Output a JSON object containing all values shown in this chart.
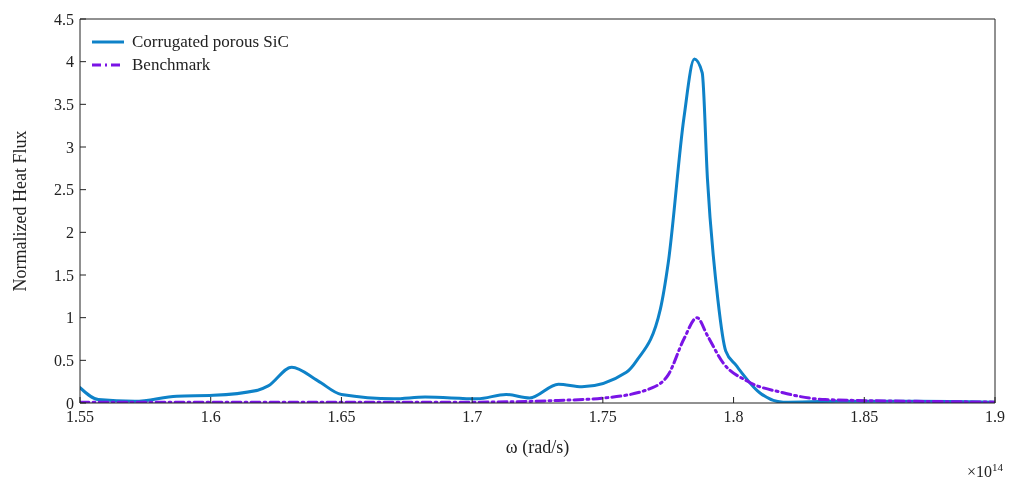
{
  "chart_data": {
    "type": "line",
    "xlabel": "ω (rad/s)",
    "ylabel": "Normalized Heat Flux",
    "annotations": [
      "×10$^{14}$"
    ],
    "xlim": [
      1.55,
      1.9
    ],
    "xticks": [
      1.55,
      1.6,
      1.65,
      1.7,
      1.75,
      1.8,
      1.85,
      1.9
    ],
    "ylim": [
      0,
      4.5
    ],
    "yticks": [
      0,
      0.5,
      1,
      1.5,
      2,
      2.5,
      3,
      3.5,
      4,
      4.5
    ],
    "grid": false,
    "legend": "top left",
    "marker": "none",
    "series": [
      {
        "name": "Corrugated porous SiC",
        "color": "#0e82c8",
        "line_style": "solid",
        "x": [
          1.55,
          1.557,
          1.571,
          1.587,
          1.601,
          1.618,
          1.622,
          1.631,
          1.641,
          1.65,
          1.67,
          1.682,
          1.702,
          1.713,
          1.722,
          1.733,
          1.742,
          1.759,
          1.763,
          1.772,
          1.775,
          1.781,
          1.785,
          1.788,
          1.79,
          1.794,
          1.797,
          1.801,
          1.81,
          1.819,
          1.84,
          1.87,
          1.9
        ],
        "values": [
          0.18,
          0.04,
          0.02,
          0.08,
          0.09,
          0.15,
          0.2,
          0.42,
          0.26,
          0.1,
          0.05,
          0.07,
          0.05,
          0.1,
          0.06,
          0.22,
          0.19,
          0.36,
          0.5,
          1.1,
          1.64,
          3.34,
          4.03,
          3.87,
          2.63,
          1.21,
          0.61,
          0.44,
          0.12,
          0.01,
          0.02,
          0.02,
          0.01
        ]
      },
      {
        "name": "Benchmark",
        "color": "#7a14e6",
        "line_style": "dashed",
        "x": [
          1.55,
          1.6,
          1.65,
          1.7,
          1.733,
          1.751,
          1.769,
          1.775,
          1.781,
          1.786,
          1.79,
          1.796,
          1.805,
          1.819,
          1.835,
          1.87,
          1.9
        ],
        "values": [
          0.01,
          0.01,
          0.01,
          0.01,
          0.03,
          0.06,
          0.18,
          0.33,
          0.75,
          1.0,
          0.79,
          0.47,
          0.26,
          0.12,
          0.04,
          0.02,
          0.01
        ]
      }
    ]
  }
}
